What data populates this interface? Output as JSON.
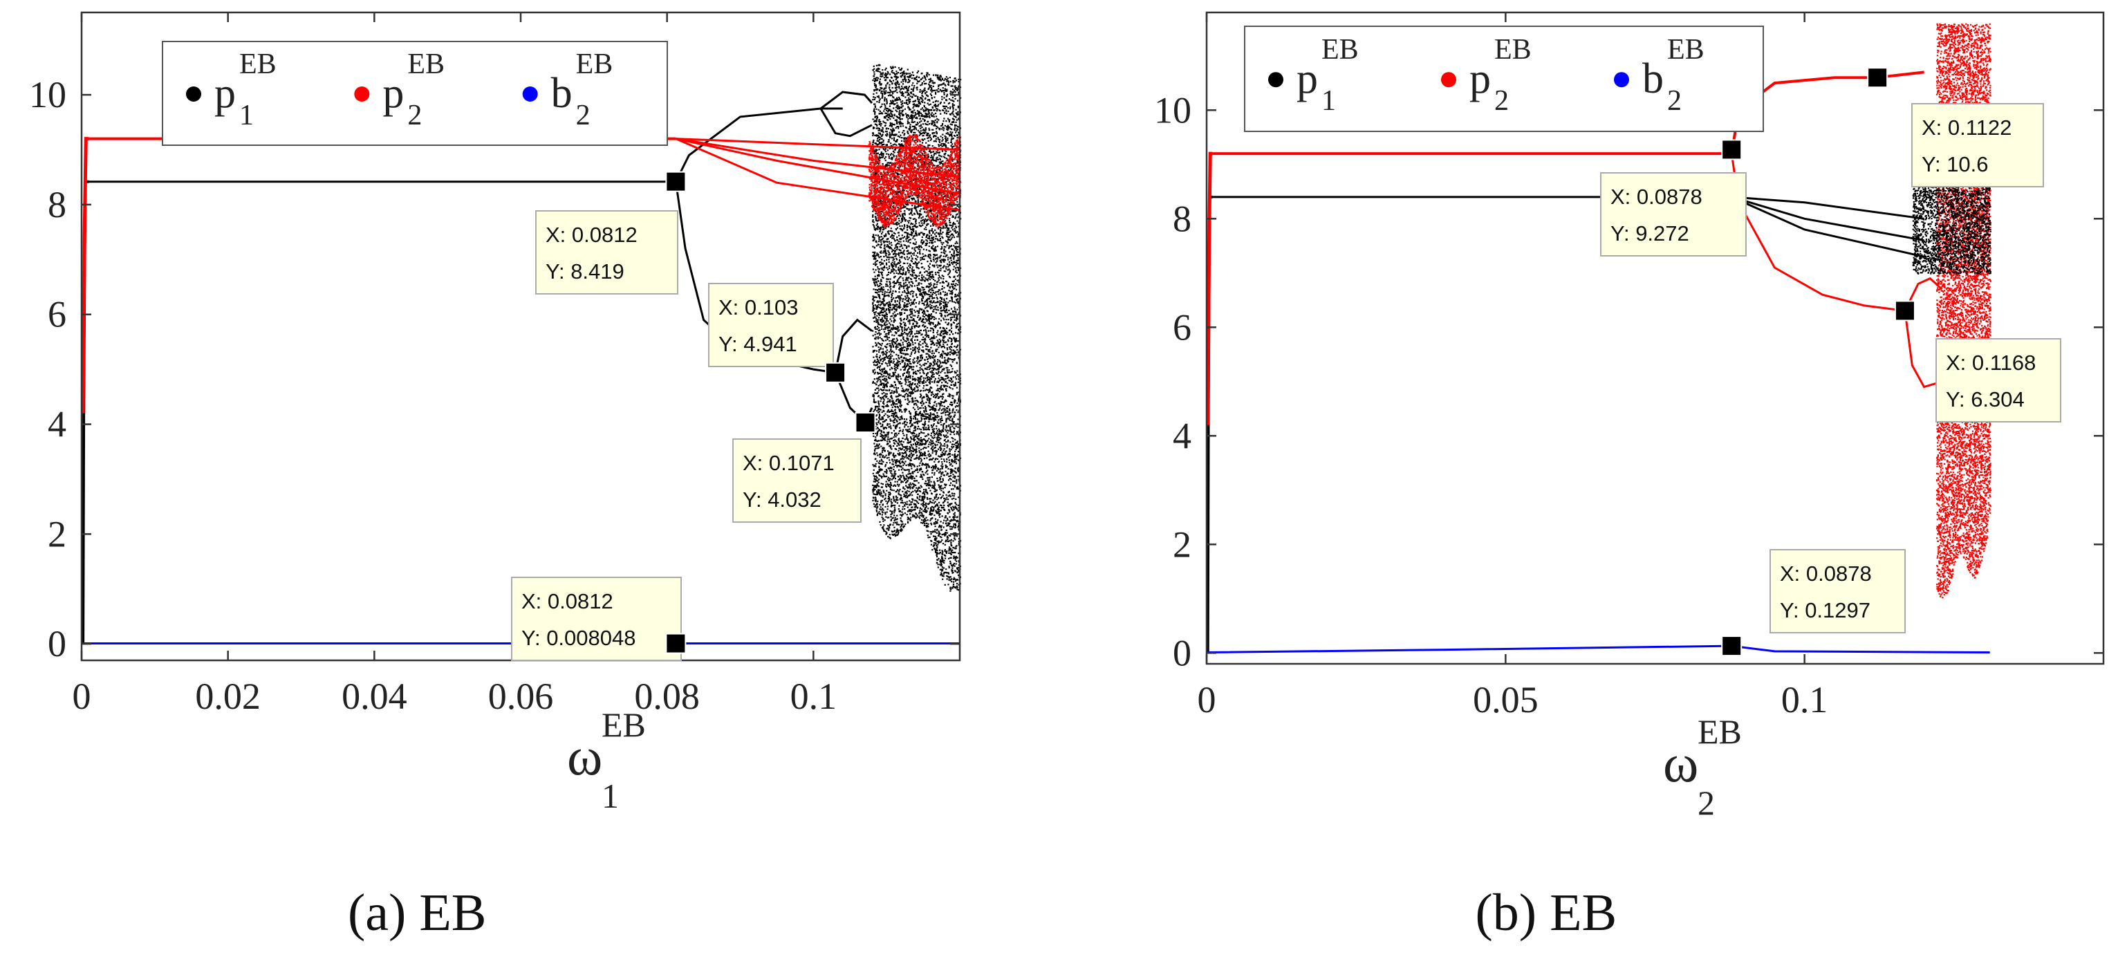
{
  "colors": {
    "p1": "#000000",
    "p2": "#ff0000",
    "b2": "#0000ff",
    "datatip_bg": "#ffffe1",
    "datatip_border": "#aaaaaa"
  },
  "chart_data": [
    {
      "type": "scatter",
      "caption": "(a)  EB",
      "xlabel": {
        "symbol": "ω",
        "sub": "1",
        "sup": "EB"
      },
      "ylabel": "",
      "xlim": [
        0,
        0.12
      ],
      "ylim": [
        -0.3,
        11.5
      ],
      "xticks": [
        0,
        0.02,
        0.04,
        0.06,
        0.08,
        0.1
      ],
      "xtick_labels": [
        "0",
        "0.02",
        "0.04",
        "0.06",
        "0.08",
        "0.1"
      ],
      "yticks": [
        0,
        2,
        4,
        6,
        8,
        10
      ],
      "ytick_labels": [
        "0",
        "2",
        "4",
        "6",
        "8",
        "10"
      ],
      "grid": false,
      "legend_position": "top-left",
      "series": [
        {
          "key": "p1",
          "name": "p",
          "sub": "1",
          "sup": "EB"
        },
        {
          "key": "p2",
          "name": "p",
          "sub": "2",
          "sup": "EB"
        },
        {
          "key": "b2",
          "name": "b",
          "sub": "2",
          "sup": "EB"
        }
      ],
      "fixed_points": {
        "p1": 8.419,
        "p2": 9.2,
        "b2": 0.008048,
        "onset_x": 0.001
      },
      "period_doubling_x": 0.0812,
      "chaos_x_range": [
        0.108,
        0.12
      ],
      "datatips": [
        {
          "x": 0.0812,
          "y": 8.419,
          "line1": "X: 0.0812",
          "line2": "Y: 8.419"
        },
        {
          "x": 0.103,
          "y": 4.941,
          "line1": "X: 0.103",
          "line2": "Y: 4.941"
        },
        {
          "x": 0.1071,
          "y": 4.032,
          "line1": "X: 0.1071",
          "line2": "Y: 4.032"
        },
        {
          "x": 0.0812,
          "y": 0.008048,
          "line1": "X: 0.0812",
          "line2": "Y: 0.008048"
        }
      ]
    },
    {
      "type": "scatter",
      "caption": "(b)  EB",
      "xlabel": {
        "symbol": "ω",
        "sub": "2",
        "sup": "EB"
      },
      "ylabel": "",
      "xlim": [
        0,
        0.15
      ],
      "ylim": [
        -0.2,
        11.8
      ],
      "xticks": [
        0,
        0.05,
        0.1
      ],
      "xtick_labels": [
        "0",
        "0.05",
        "0.1"
      ],
      "yticks": [
        0,
        2,
        4,
        6,
        8,
        10
      ],
      "ytick_labels": [
        "0",
        "2",
        "4",
        "6",
        "8",
        "10"
      ],
      "grid": false,
      "legend_position": "top-left",
      "series": [
        {
          "key": "p1",
          "name": "p",
          "sub": "1",
          "sup": "EB"
        },
        {
          "key": "p2",
          "name": "p",
          "sub": "2",
          "sup": "EB"
        },
        {
          "key": "b2",
          "name": "b",
          "sub": "2",
          "sup": "EB"
        }
      ],
      "fixed_points": {
        "p1": 8.4,
        "p2": 9.2,
        "b2": 0.1297,
        "onset_x": 0.001
      },
      "period_doubling_x": 0.0878,
      "chaos_x_range": [
        0.122,
        0.131
      ],
      "datatips": [
        {
          "x": 0.0878,
          "y": 9.272,
          "line1": "X: 0.0878",
          "line2": "Y: 9.272"
        },
        {
          "x": 0.1122,
          "y": 10.6,
          "line1": "X: 0.1122",
          "line2": "Y: 10.6"
        },
        {
          "x": 0.1168,
          "y": 6.304,
          "line1": "X: 0.1168",
          "line2": "Y: 6.304"
        },
        {
          "x": 0.0878,
          "y": 0.1297,
          "line1": "X: 0.0878",
          "line2": "Y: 0.1297"
        }
      ]
    }
  ]
}
